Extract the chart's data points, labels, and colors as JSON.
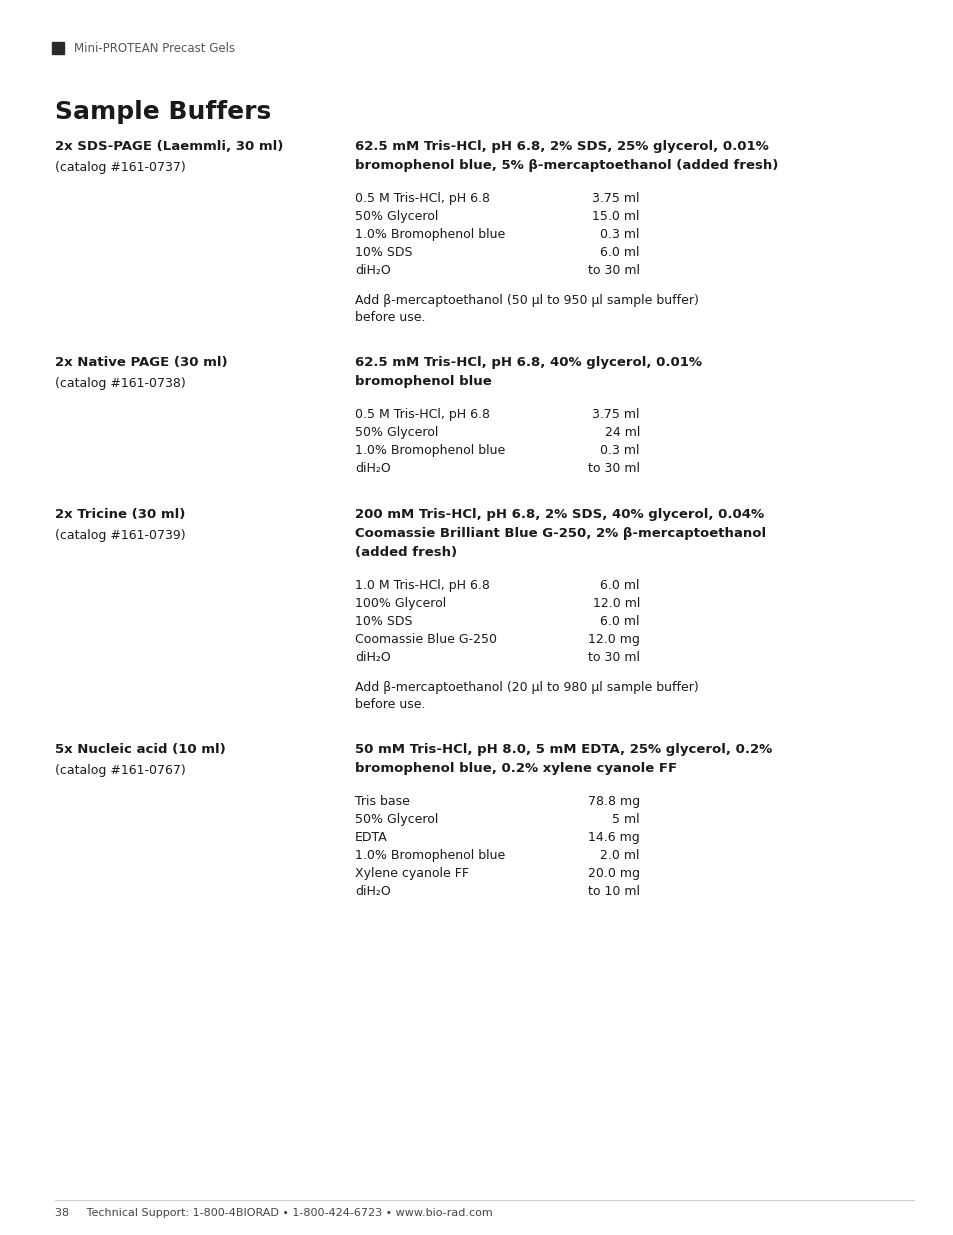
{
  "bg_color": "#ffffff",
  "text_color": "#1a1a1a",
  "header_bar_color": "#2a2a2a",
  "header_text": "Mini-PROTEAN Precast Gels",
  "title": "Sample Buffers",
  "footer_text": "38     Technical Support: 1-800-4BIORAD • 1-800-424-6723 • www.bio-rad.com",
  "sections": [
    {
      "left_title": "2x SDS-PAGE (Laemmli, 30 ml)",
      "left_sub": "(catalog #161-0737)",
      "right_title_lines": [
        "62.5 mM Tris-HCl, pH 6.8, 2% SDS, 25% glycerol, 0.01%",
        "bromophenol blue, 5% β-mercaptoethanol (added fresh)"
      ],
      "ingredients": [
        [
          "0.5 M Tris-HCl, pH 6.8",
          "3.75 ml"
        ],
        [
          "50% Glycerol",
          "15.0 ml"
        ],
        [
          "1.0% Bromophenol blue",
          "0.3 ml"
        ],
        [
          "10% SDS",
          "6.0 ml"
        ],
        [
          "diH₂O",
          "to 30 ml"
        ]
      ],
      "note_lines": [
        "Add β-mercaptoethanol (50 μl to 950 μl sample buffer)",
        "before use."
      ]
    },
    {
      "left_title": "2x Native PAGE (30 ml)",
      "left_sub": "(catalog #161-0738)",
      "right_title_lines": [
        "62.5 mM Tris-HCl, pH 6.8, 40% glycerol, 0.01%",
        "bromophenol blue"
      ],
      "ingredients": [
        [
          "0.5 M Tris-HCl, pH 6.8",
          "3.75 ml"
        ],
        [
          "50% Glycerol",
          "24 ml"
        ],
        [
          "1.0% Bromophenol blue",
          "0.3 ml"
        ],
        [
          "diH₂O",
          "to 30 ml"
        ]
      ],
      "note_lines": []
    },
    {
      "left_title": "2x Tricine (30 ml)",
      "left_sub": "(catalog #161-0739)",
      "right_title_lines": [
        "200 mM Tris-HCl, pH 6.8, 2% SDS, 40% glycerol, 0.04%",
        "Coomassie Brilliant Blue G-250, 2% β-mercaptoethanol",
        "(added fresh)"
      ],
      "ingredients": [
        [
          "1.0 M Tris-HCl, pH 6.8",
          "6.0 ml"
        ],
        [
          "100% Glycerol",
          "12.0 ml"
        ],
        [
          "10% SDS",
          "6.0 ml"
        ],
        [
          "Coomassie Blue G-250",
          "12.0 mg"
        ],
        [
          "diH₂O",
          "to 30 ml"
        ]
      ],
      "note_lines": [
        "Add β-mercaptoethanol (20 μl to 980 μl sample buffer)",
        "before use."
      ]
    },
    {
      "left_title": "5x Nucleic acid (10 ml)",
      "left_sub": "(catalog #161-0767)",
      "right_title_lines": [
        "50 mM Tris-HCl, pH 8.0, 5 mM EDTA, 25% glycerol, 0.2%",
        "bromophenol blue, 0.2% xylene cyanole FF"
      ],
      "ingredients": [
        [
          "Tris base",
          "78.8 mg"
        ],
        [
          "50% Glycerol",
          "5 ml"
        ],
        [
          "EDTA",
          "14.6 mg"
        ],
        [
          "1.0% Bromophenol blue",
          "2.0 ml"
        ],
        [
          "Xylene cyanole FF",
          "20.0 mg"
        ],
        [
          "diH₂O",
          "to 10 ml"
        ]
      ],
      "note_lines": []
    }
  ]
}
